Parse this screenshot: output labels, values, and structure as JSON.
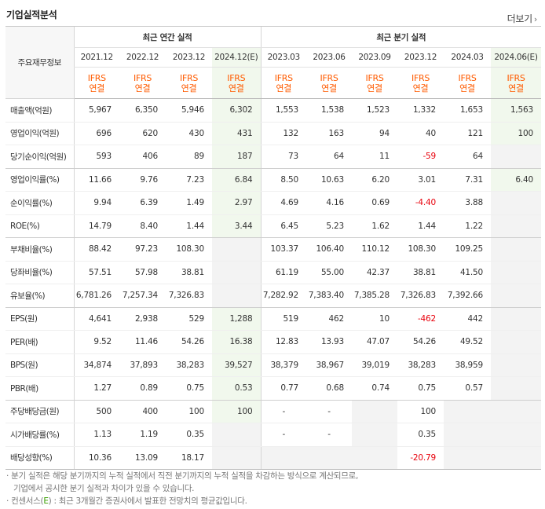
{
  "header": {
    "title": "기업실적분석",
    "more_label": "더보기"
  },
  "table": {
    "label_header": "주요재무정보",
    "group_annual": "최근 연간 실적",
    "group_quarterly": "최근 분기 실적",
    "periods": [
      "2021.12",
      "2022.12",
      "2023.12",
      "2024.12(E)",
      "2023.03",
      "2023.06",
      "2023.09",
      "2023.12",
      "2024.03",
      "2024.06(E)"
    ],
    "estimate_columns": [
      3,
      9
    ],
    "ifrs_line1": "IFRS",
    "ifrs_line2": "연결",
    "rows": [
      {
        "label": "매출액(억원)",
        "values": [
          "5,967",
          "6,350",
          "5,946",
          "6,302",
          "1,553",
          "1,538",
          "1,523",
          "1,332",
          "1,653",
          "1,563"
        ]
      },
      {
        "label": "영업이익(억원)",
        "values": [
          "696",
          "620",
          "430",
          "431",
          "132",
          "163",
          "94",
          "40",
          "121",
          "100"
        ]
      },
      {
        "label": "당기순이익(억원)",
        "values": [
          "593",
          "406",
          "89",
          "187",
          "73",
          "64",
          "11",
          "-59",
          "64",
          ""
        ]
      },
      {
        "label": "영업이익률(%)",
        "values": [
          "11.66",
          "9.76",
          "7.23",
          "6.84",
          "8.50",
          "10.63",
          "6.20",
          "3.01",
          "7.31",
          "6.40"
        ]
      },
      {
        "label": "순이익률(%)",
        "values": [
          "9.94",
          "6.39",
          "1.49",
          "2.97",
          "4.69",
          "4.16",
          "0.69",
          "-4.40",
          "3.88",
          ""
        ]
      },
      {
        "label": "ROE(%)",
        "values": [
          "14.79",
          "8.40",
          "1.44",
          "3.44",
          "6.45",
          "5.23",
          "1.62",
          "1.44",
          "1.22",
          ""
        ]
      },
      {
        "label": "부채비율(%)",
        "values": [
          "88.42",
          "97.23",
          "108.30",
          "",
          "103.37",
          "106.40",
          "110.12",
          "108.30",
          "109.25",
          ""
        ]
      },
      {
        "label": "당좌비율(%)",
        "values": [
          "57.51",
          "57.98",
          "38.81",
          "",
          "61.19",
          "55.00",
          "42.37",
          "38.81",
          "41.50",
          ""
        ]
      },
      {
        "label": "유보율(%)",
        "values": [
          "6,781.26",
          "7,257.34",
          "7,326.83",
          "",
          "7,282.92",
          "7,383.40",
          "7,385.28",
          "7,326.83",
          "7,392.66",
          ""
        ]
      },
      {
        "label": "EPS(원)",
        "values": [
          "4,641",
          "2,938",
          "529",
          "1,288",
          "519",
          "462",
          "10",
          "-462",
          "442",
          ""
        ]
      },
      {
        "label": "PER(배)",
        "values": [
          "9.52",
          "11.46",
          "54.26",
          "16.38",
          "12.83",
          "13.93",
          "47.07",
          "54.26",
          "49.52",
          ""
        ]
      },
      {
        "label": "BPS(원)",
        "values": [
          "34,874",
          "37,893",
          "38,283",
          "39,527",
          "38,379",
          "38,967",
          "39,019",
          "38,283",
          "38,959",
          ""
        ]
      },
      {
        "label": "PBR(배)",
        "values": [
          "1.27",
          "0.89",
          "0.75",
          "0.53",
          "0.77",
          "0.68",
          "0.74",
          "0.75",
          "0.57",
          ""
        ]
      },
      {
        "label": "주당배당금(원)",
        "values": [
          "500",
          "400",
          "100",
          "100",
          "-",
          "-",
          "",
          "100",
          "",
          ""
        ]
      },
      {
        "label": "시가배당률(%)",
        "values": [
          "1.13",
          "1.19",
          "0.35",
          "",
          "-",
          "-",
          "",
          "0.35",
          "",
          ""
        ]
      },
      {
        "label": "배당성향(%)",
        "values": [
          "10.36",
          "13.09",
          "18.17",
          "",
          "",
          "",
          "",
          "-20.79",
          "",
          ""
        ]
      }
    ],
    "group_break_after_rows": [
      2,
      5,
      8,
      12,
      15
    ]
  },
  "notes": {
    "line1": "분기 실적은 해당 분기까지의 누적 실적에서 직전 분기까지의 누적 실적을 차감하는 방식으로 계산되므로,",
    "line2": "기업에서 공시한 분기 실적과 차이가 있을 수 있습니다.",
    "line3_prefix": "컨센서스(",
    "line3_e": "E",
    "line3_suffix": ") : 최근 3개월간 증권사에서 발표한 전망치의 평균값입니다."
  },
  "colors": {
    "ifrs": "#ff5b00",
    "estimate_bg": "#f1f8ed",
    "estimate_text": "#3aa000",
    "negative": "#e8000b",
    "empty_bg": "#f3f3f3"
  }
}
